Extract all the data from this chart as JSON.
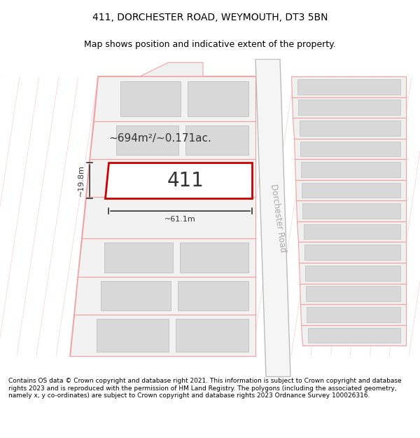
{
  "title_line1": "411, DORCHESTER ROAD, WEYMOUTH, DT3 5BN",
  "title_line2": "Map shows position and indicative extent of the property.",
  "footer_text": "Contains OS data © Crown copyright and database right 2021. This information is subject to Crown copyright and database rights 2023 and is reproduced with the permission of HM Land Registry. The polygons (including the associated geometry, namely x, y co-ordinates) are subject to Crown copyright and database rights 2023 Ordnance Survey 100026316.",
  "area_label": "~694m²/~0.171ac.",
  "width_label": "~61.1m",
  "height_label": "~19.8m",
  "plot_number": "411",
  "road_label": "Dorchester Road",
  "bg_color": "#ffffff",
  "plot_fill": "#ffffff",
  "plot_border": "#cc0000",
  "parcel_fill": "#e8e8e8",
  "parcel_stroke": "#f5a0a0",
  "road_fill": "#f2f2f2",
  "road_stroke": "#cccccc",
  "map_bg": "#ffffff",
  "title_fontsize": 10,
  "subtitle_fontsize": 9,
  "footer_fontsize": 6.5
}
